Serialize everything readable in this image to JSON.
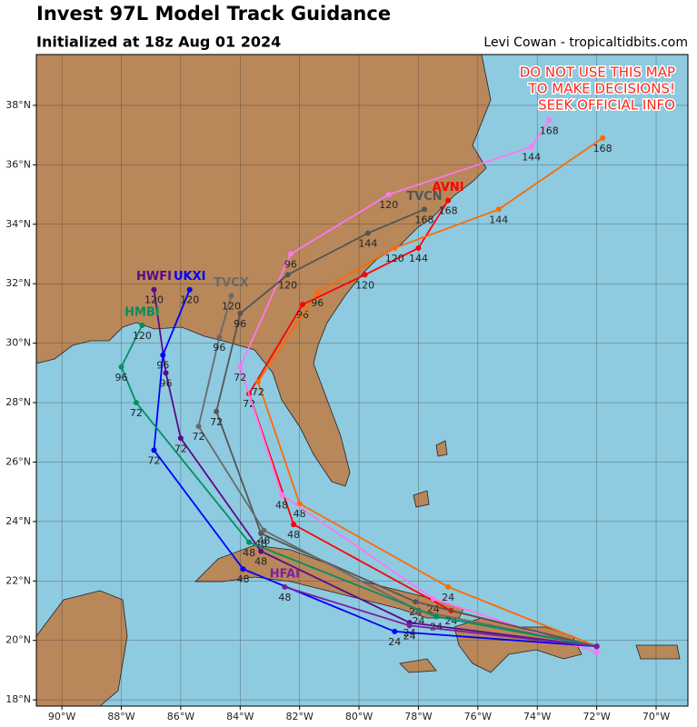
{
  "chart_data": {
    "type": "map",
    "title": "Invest 97L Model Track Guidance",
    "subtitle": "Initialized at 18z Aug 01 2024",
    "credit": "Levi Cowan - tropicaltidbits.com",
    "warning": [
      "DO NOT USE THIS MAP",
      "TO MAKE DECISIONS!",
      "SEEK OFFICIAL INFO"
    ],
    "xlim": [
      -90.86,
      -68.93
    ],
    "ylim": [
      17.79,
      39.71
    ],
    "xticks": [
      {
        "value": -90,
        "label": "90°W"
      },
      {
        "value": -88,
        "label": "88°W"
      },
      {
        "value": -86,
        "label": "86°W"
      },
      {
        "value": -84,
        "label": "84°W"
      },
      {
        "value": -82,
        "label": "82°W"
      },
      {
        "value": -80,
        "label": "80°W"
      },
      {
        "value": -78,
        "label": "78°W"
      },
      {
        "value": -76,
        "label": "76°W"
      },
      {
        "value": -74,
        "label": "74°W"
      },
      {
        "value": -72,
        "label": "72°W"
      },
      {
        "value": -70,
        "label": "70°W"
      }
    ],
    "yticks": [
      {
        "value": 18,
        "label": "18°N"
      },
      {
        "value": 20,
        "label": "20°N"
      },
      {
        "value": 22,
        "label": "22°N"
      },
      {
        "value": 24,
        "label": "24°N"
      },
      {
        "value": 26,
        "label": "26°N"
      },
      {
        "value": 28,
        "label": "28°N"
      },
      {
        "value": 30,
        "label": "30°N"
      },
      {
        "value": 32,
        "label": "32°N"
      },
      {
        "value": 34,
        "label": "34°N"
      },
      {
        "value": 36,
        "label": "36°N"
      },
      {
        "value": 38,
        "label": "38°N"
      }
    ],
    "grid": true,
    "series": [
      {
        "name": "AVNI",
        "color": "#ff0000",
        "x": [
          -72.0,
          -76.9,
          -82.2,
          -83.7,
          -81.9,
          -79.8,
          -78.0,
          -77.0
        ],
        "y": [
          19.8,
          21.0,
          23.9,
          28.3,
          31.3,
          32.3,
          33.2,
          34.8
        ],
        "hours": [
          null,
          24,
          48,
          72,
          96,
          120,
          144,
          168
        ]
      },
      {
        "color": "#ff6a00",
        "x": [
          -72.0,
          -77.0,
          -82.0,
          -83.4,
          -81.4,
          -78.8,
          -75.3,
          -71.8
        ],
        "y": [
          19.8,
          21.8,
          24.6,
          28.7,
          31.7,
          33.2,
          34.5,
          36.9
        ],
        "hours": [
          null,
          24,
          48,
          72,
          96,
          120,
          144,
          168
        ]
      },
      {
        "color": "#ff77ee",
        "x": [
          -72.0,
          -77.5,
          -82.6,
          -84.0,
          -82.3,
          -79.0,
          -74.2,
          -73.6
        ],
        "y": [
          19.6,
          21.4,
          24.9,
          29.2,
          33.0,
          35.0,
          36.6,
          37.5
        ],
        "hours": [
          null,
          24,
          48,
          72,
          96,
          120,
          144,
          168
        ]
      },
      {
        "name": "TVCN",
        "color": "#555555",
        "x": [
          -72.0,
          -78.1,
          -83.3,
          -84.8,
          -84.0,
          -82.4,
          -79.7,
          -77.8
        ],
        "y": [
          19.8,
          21.3,
          23.6,
          27.7,
          31.0,
          32.3,
          33.7,
          34.5
        ],
        "hours": [
          null,
          24,
          48,
          72,
          96,
          120,
          144,
          168
        ]
      },
      {
        "name": "TVCX",
        "color": "#6a6a6a",
        "x": [
          -72.0,
          -78.0,
          -83.2,
          -85.4,
          -84.7,
          -84.3
        ],
        "y": [
          19.8,
          21.0,
          23.7,
          27.2,
          30.2,
          31.6
        ],
        "hours": [
          null,
          24,
          48,
          72,
          96,
          120
        ]
      },
      {
        "name": "HWFI",
        "color": "#5a0a8a",
        "x": [
          -72.0,
          -78.3,
          -83.3,
          -86.0,
          -86.5,
          -86.9
        ],
        "y": [
          19.8,
          20.6,
          23.0,
          26.8,
          29.0,
          31.8
        ],
        "hours": [
          null,
          24,
          48,
          72,
          96,
          120
        ]
      },
      {
        "name": "UKXI",
        "color": "#0000ff",
        "x": [
          -72.0,
          -78.8,
          -83.9,
          -86.9,
          -86.6,
          -85.7
        ],
        "y": [
          19.8,
          20.3,
          22.4,
          26.4,
          29.6,
          31.8
        ],
        "hours": [
          null,
          24,
          48,
          72,
          96,
          120
        ]
      },
      {
        "name": "HMBI",
        "color": "#009060",
        "x": [
          -72.0,
          -77.4,
          -83.7,
          -87.5,
          -88.0,
          -87.3
        ],
        "y": [
          19.8,
          20.8,
          23.3,
          28.0,
          29.2,
          30.6
        ],
        "hours": [
          null,
          24,
          48,
          72,
          96,
          120
        ]
      },
      {
        "name": "HFAI",
        "color": "#7a1fa2",
        "x": [
          -72.0,
          -78.3,
          -82.5
        ],
        "y": [
          19.8,
          20.5,
          21.8
        ],
        "hours": [
          null,
          24,
          48
        ]
      }
    ]
  }
}
